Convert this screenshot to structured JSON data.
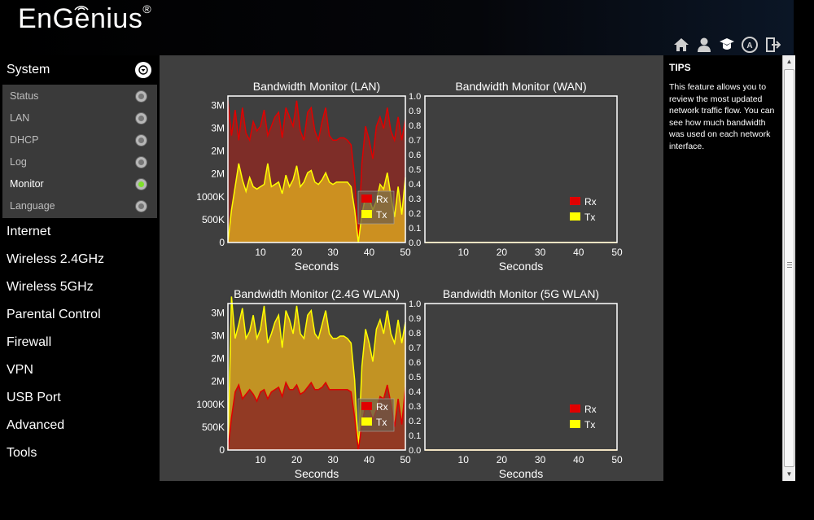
{
  "brand": {
    "logo_text": "EnGenius",
    "registered": "®"
  },
  "top_icons": [
    "home-icon",
    "user-icon",
    "wizard-icon",
    "language-icon",
    "logout-icon"
  ],
  "sidebar": {
    "system_label": "System",
    "submenu": [
      {
        "label": "Status",
        "active": false
      },
      {
        "label": "LAN",
        "active": false
      },
      {
        "label": "DHCP",
        "active": false
      },
      {
        "label": "Log",
        "active": false
      },
      {
        "label": "Monitor",
        "active": true
      },
      {
        "label": "Language",
        "active": false
      }
    ],
    "items": [
      {
        "label": "Internet"
      },
      {
        "label": "Wireless 2.4GHz"
      },
      {
        "label": "Wireless 5GHz"
      },
      {
        "label": "Parental Control"
      },
      {
        "label": "Firewall"
      },
      {
        "label": "VPN"
      },
      {
        "label": "USB Port"
      },
      {
        "label": "Advanced"
      },
      {
        "label": "Tools"
      }
    ]
  },
  "tips": {
    "title": "TIPS",
    "text": "This feature allows you to review the most updated network traffic flow. You can see how much bandwidth was used on each network interface."
  },
  "colors": {
    "rx": "#e00000",
    "tx": "#ffff00",
    "rx_fill": "#8a2a24",
    "tx_fill": "#d9a21e",
    "plot_bg": "#3f3f3f",
    "frame": "#ffffff"
  },
  "chart_data": [
    {
      "type": "area",
      "title": "Bandwidth Monitor (LAN)",
      "xlabel": "Seconds",
      "x_ticks": [
        "10",
        "20",
        "30",
        "40",
        "50"
      ],
      "y_ticks": [
        "0",
        "500K",
        "1000K",
        "2M",
        "2M",
        "3M",
        "3M"
      ],
      "xlim": [
        1,
        50
      ],
      "ylim": [
        0,
        3.15
      ],
      "legend": [
        {
          "name": "Rx",
          "color": "#e00000"
        },
        {
          "name": "Tx",
          "color": "#ffff00"
        }
      ],
      "series": [
        {
          "name": "Rx",
          "values": [
            3.05,
            2.3,
            2.85,
            2.2,
            2.9,
            2.35,
            2.2,
            2.6,
            2.4,
            2.5,
            2.85,
            2.3,
            2.5,
            2.7,
            2.8,
            2.25,
            2.9,
            2.7,
            2.5,
            3.05,
            2.4,
            2.2,
            2.8,
            2.9,
            2.4,
            2.2,
            2.6,
            2.9,
            2.3,
            2.2,
            2.2,
            2.25,
            2.25,
            2.2,
            2.1,
            1.4,
            0.0,
            1.7,
            2.5,
            2.2,
            1.8,
            2.5,
            2.7,
            2.45,
            2.9,
            2.4,
            2.2,
            2.7,
            2.2,
            2.65
          ]
        },
        {
          "name": "Tx",
          "values": [
            0.0,
            0.7,
            1.2,
            1.7,
            1.35,
            1.1,
            1.4,
            1.2,
            1.15,
            1.2,
            1.25,
            1.7,
            1.2,
            1.25,
            1.3,
            1.05,
            1.45,
            1.2,
            1.35,
            1.65,
            1.2,
            1.3,
            1.5,
            1.55,
            1.3,
            1.25,
            1.35,
            1.5,
            1.3,
            1.25,
            1.3,
            1.3,
            1.3,
            1.3,
            1.2,
            0.7,
            0.0,
            0.6,
            1.0,
            0.95,
            0.7,
            0.9,
            1.25,
            1.15,
            1.5,
            1.0,
            0.55,
            1.2,
            0.6,
            1.4
          ]
        }
      ],
      "y2_ticks": [
        "0.0",
        "0.1",
        "0.2",
        "0.3",
        "0.4",
        "0.5",
        "0.6",
        "0.7",
        "0.8",
        "0.9",
        "1.0"
      ]
    },
    {
      "type": "area",
      "title": "Bandwidth Monitor (WAN)",
      "xlabel": "Seconds",
      "x_ticks": [
        "10",
        "20",
        "30",
        "40",
        "50"
      ],
      "y_ticks": [
        "0.0",
        "0.1",
        "0.2",
        "0.3",
        "0.4",
        "0.5",
        "0.6",
        "0.7",
        "0.8",
        "0.9",
        "1.0"
      ],
      "xlim": [
        0,
        50
      ],
      "ylim": [
        0,
        1
      ],
      "legend": [
        {
          "name": "Rx",
          "color": "#e00000"
        },
        {
          "name": "Tx",
          "color": "#ffff00"
        }
      ],
      "series": [
        {
          "name": "Rx",
          "values": [
            0,
            0
          ]
        },
        {
          "name": "Tx",
          "values": [
            0,
            0
          ]
        }
      ]
    },
    {
      "type": "area",
      "title": "Bandwidth Monitor (2.4G WLAN)",
      "xlabel": "Seconds",
      "x_ticks": [
        "10",
        "20",
        "30",
        "40",
        "50"
      ],
      "y_ticks": [
        "0",
        "500K",
        "1000K",
        "2M",
        "2M",
        "3M",
        "3M"
      ],
      "xlim": [
        1,
        50
      ],
      "ylim": [
        0,
        3.15
      ],
      "legend": [
        {
          "name": "Rx",
          "color": "#e00000"
        },
        {
          "name": "Tx",
          "color": "#ffff00"
        }
      ],
      "series": [
        {
          "name": "Tx",
          "values": [
            0.0,
            3.3,
            2.4,
            2.7,
            3.05,
            2.4,
            2.55,
            2.9,
            2.4,
            2.6,
            3.1,
            2.3,
            2.5,
            2.75,
            2.9,
            2.2,
            3.0,
            2.8,
            2.5,
            3.1,
            2.5,
            2.4,
            2.9,
            3.0,
            2.5,
            2.4,
            2.7,
            3.0,
            2.5,
            2.4,
            2.4,
            2.45,
            2.45,
            2.4,
            2.3,
            1.5,
            0.0,
            1.8,
            2.6,
            2.3,
            1.9,
            2.6,
            2.8,
            2.5,
            3.0,
            2.5,
            2.3,
            2.8,
            2.3,
            2.75
          ]
        },
        {
          "name": "Rx",
          "values": [
            0.0,
            0.7,
            1.25,
            1.4,
            1.1,
            1.2,
            1.3,
            1.2,
            1.05,
            1.25,
            1.3,
            1.1,
            1.25,
            1.3,
            1.35,
            1.15,
            1.45,
            1.3,
            1.3,
            1.4,
            1.2,
            1.25,
            1.35,
            1.45,
            1.3,
            1.3,
            1.35,
            1.45,
            1.3,
            1.3,
            1.3,
            1.3,
            1.3,
            1.3,
            1.25,
            0.7,
            0.0,
            0.55,
            0.95,
            0.9,
            0.65,
            0.85,
            1.15,
            1.1,
            1.4,
            1.0,
            0.5,
            1.1,
            0.55,
            1.35
          ]
        }
      ],
      "y2_ticks": [
        "0.0",
        "0.1",
        "0.2",
        "0.3",
        "0.4",
        "0.5",
        "0.6",
        "0.7",
        "0.8",
        "0.9",
        "1.0"
      ]
    },
    {
      "type": "area",
      "title": "Bandwidth Monitor (5G WLAN)",
      "xlabel": "Seconds",
      "x_ticks": [
        "10",
        "20",
        "30",
        "40",
        "50"
      ],
      "y_ticks": [
        "0.0",
        "0.1",
        "0.2",
        "0.3",
        "0.4",
        "0.5",
        "0.6",
        "0.7",
        "0.8",
        "0.9",
        "1.0"
      ],
      "xlim": [
        0,
        50
      ],
      "ylim": [
        0,
        1
      ],
      "legend": [
        {
          "name": "Rx",
          "color": "#e00000"
        },
        {
          "name": "Tx",
          "color": "#ffff00"
        }
      ],
      "series": [
        {
          "name": "Rx",
          "values": [
            0,
            0
          ]
        },
        {
          "name": "Tx",
          "values": [
            0,
            0
          ]
        }
      ]
    }
  ]
}
